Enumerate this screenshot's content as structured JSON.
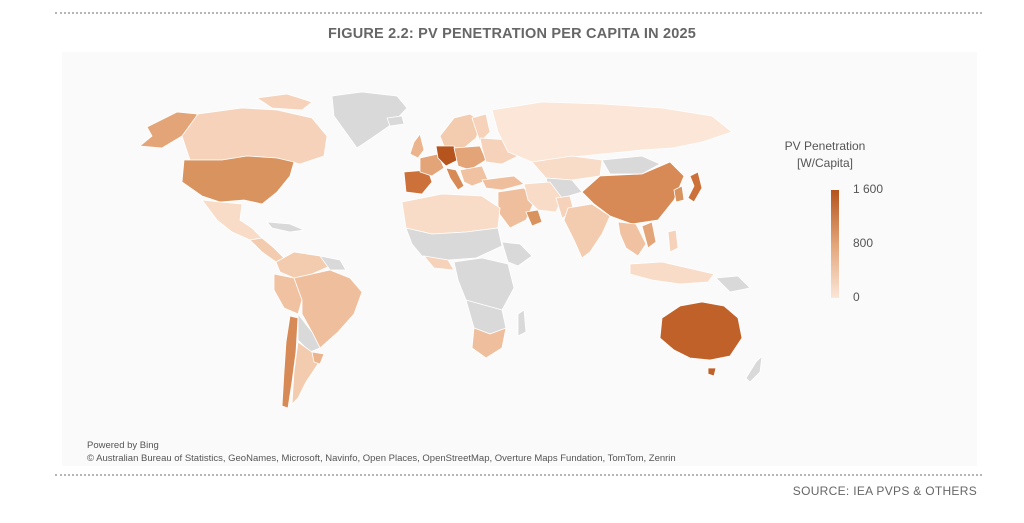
{
  "title": "FIGURE 2.2: PV PENETRATION PER CAPITA IN 2025",
  "legend": {
    "title_line1": "PV Penetration",
    "title_line2": "[W/Capita]",
    "max_label": "1 600",
    "mid_label": "800",
    "min_label": "0",
    "color_high": "#b5541d",
    "color_mid": "#e3a478",
    "color_low": "#fbe6d8",
    "color_no_data": "#d9d9d9"
  },
  "credits": {
    "powered_by": "Powered by Bing",
    "attribution": "© Australian Bureau of Statistics, GeoNames, Microsoft, Navinfo, Open Places, OpenStreetMap, Overture Maps Fundation, TomTom, Zenrin"
  },
  "source": "SOURCE: IEA PVPS & OTHERS"
}
